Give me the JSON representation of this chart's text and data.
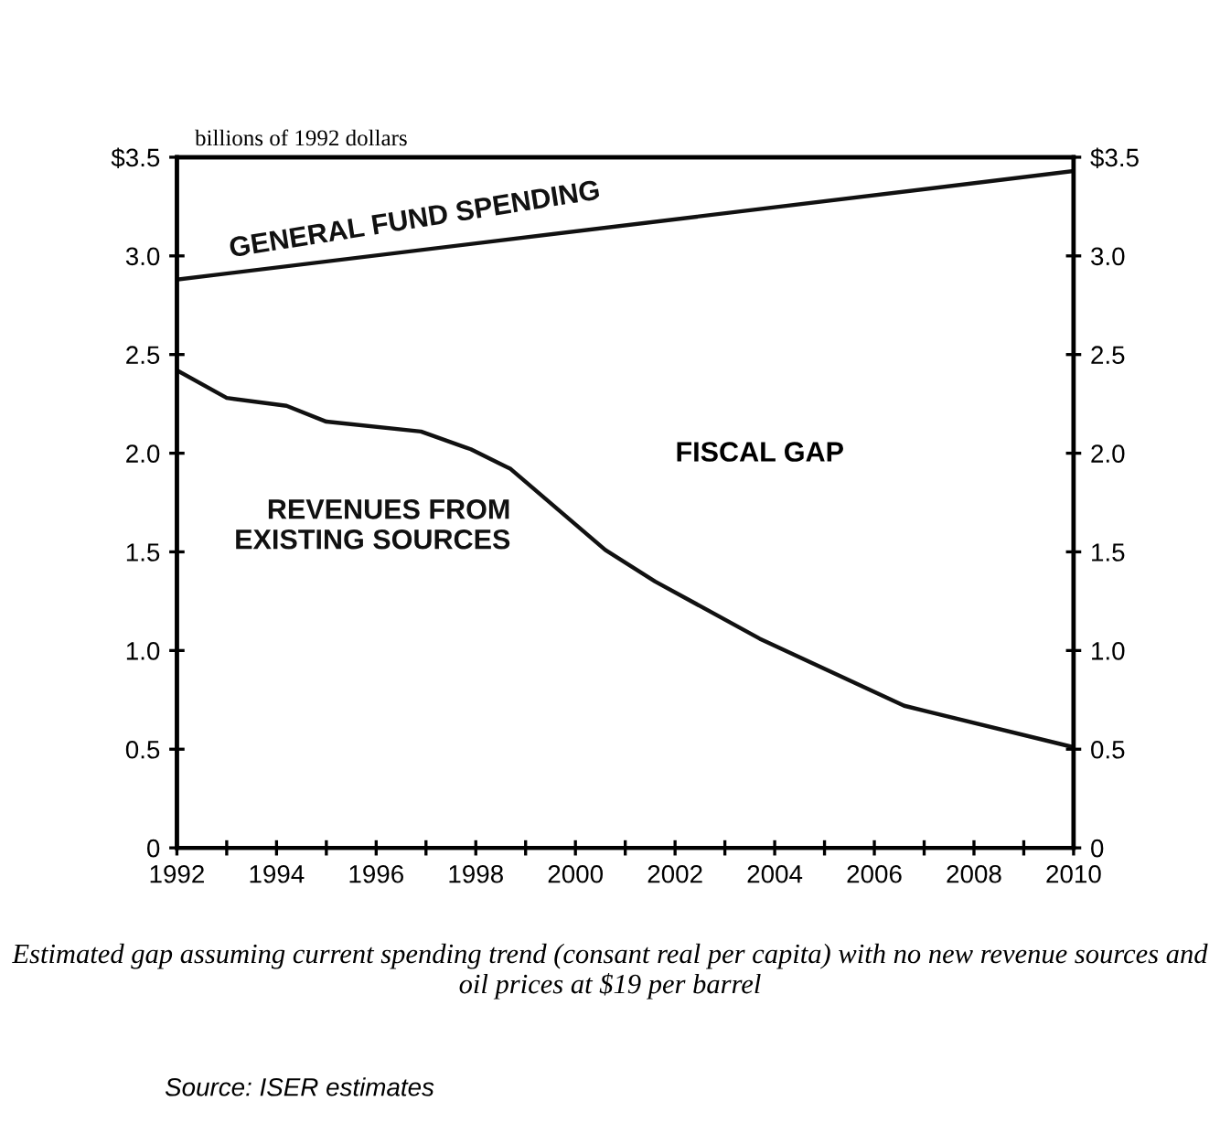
{
  "chart_data": {
    "type": "line",
    "ylabel": "billions of 1992 dollars",
    "x": [
      1992,
      1993,
      1994.2,
      1995,
      1996.9,
      1997.9,
      1998.7,
      2000.6,
      2001.6,
      2003.7,
      2006.6,
      2010
    ],
    "series": [
      {
        "name": "GENERAL FUND SPENDING",
        "color": "#111111",
        "x": [
          1992,
          2010
        ],
        "values": [
          2.88,
          3.43
        ]
      },
      {
        "name": "REVENUES FROM EXISTING SOURCES",
        "color": "#111111",
        "values": [
          2.42,
          2.28,
          2.24,
          2.16,
          2.11,
          2.02,
          1.92,
          1.51,
          1.35,
          1.06,
          0.72,
          0.51
        ]
      }
    ],
    "xlim": [
      1992,
      2010
    ],
    "xticks": [
      1992,
      {
        "value": 1993,
        "label": null
      },
      1994,
      {
        "value": 1995,
        "label": null
      },
      1996,
      {
        "value": 1997,
        "label": null
      },
      1998,
      {
        "value": 1999,
        "label": null
      },
      2000,
      {
        "value": 2001,
        "label": null
      },
      2002,
      {
        "value": 2003,
        "label": null
      },
      2004,
      {
        "value": 2005,
        "label": null
      },
      2006,
      {
        "value": 2007,
        "label": null
      },
      2008,
      {
        "value": 2009,
        "label": null
      },
      2010
    ],
    "ylim": [
      0,
      3.5
    ],
    "yticks": [
      0,
      0.5,
      {
        "value": 1,
        "label": "1.0"
      },
      1.5,
      {
        "value": 2,
        "label": "2.0"
      },
      2.5,
      {
        "value": 3,
        "label": "3.0"
      },
      {
        "value": 3.5,
        "label": "$3.5"
      }
    ],
    "y2lim": [
      0,
      3.5
    ],
    "y2ticks": [
      0,
      0.5,
      {
        "value": 1,
        "label": "1.0"
      },
      1.5,
      {
        "value": 2,
        "label": "2.0"
      },
      2.5,
      {
        "value": 3,
        "label": "3.0"
      },
      {
        "value": 3.5,
        "label": "$3.5"
      }
    ],
    "annotations": [
      "FISCAL GAP",
      "Estimated gap assuming current spending trend (consant real per capita) with no new revenue sources and oil prices at $19 per barrel",
      "Source: ISER estimates"
    ],
    "grid": false,
    "legend": false,
    "marker": "none",
    "line_style": "solid"
  }
}
